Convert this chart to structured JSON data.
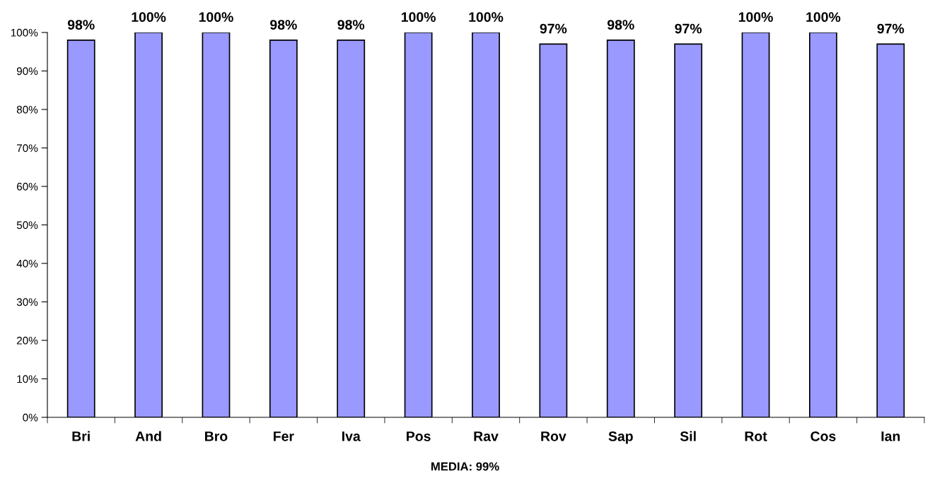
{
  "chart_data": {
    "type": "bar",
    "categories": [
      "Bri",
      "And",
      "Bro",
      "Fer",
      "Iva",
      "Pos",
      "Rav",
      "Rov",
      "Sap",
      "Sil",
      "Rot",
      "Cos",
      "Ian"
    ],
    "values": [
      98,
      100,
      100,
      98,
      98,
      100,
      100,
      97,
      98,
      97,
      100,
      100,
      97
    ],
    "value_labels": [
      "98%",
      "100%",
      "100%",
      "98%",
      "98%",
      "100%",
      "100%",
      "97%",
      "98%",
      "97%",
      "100%",
      "100%",
      "97%"
    ],
    "color": "#9999ff",
    "ylim": [
      0,
      100
    ],
    "yticks": [
      {
        "value": 0,
        "label": "0%"
      },
      {
        "value": 10,
        "label": "10%"
      },
      {
        "value": 20,
        "label": "20%"
      },
      {
        "value": 30,
        "label": "30%"
      },
      {
        "value": 40,
        "label": "40%"
      },
      {
        "value": 50,
        "label": "50%"
      },
      {
        "value": 60,
        "label": "60%"
      },
      {
        "value": 70,
        "label": "70%"
      },
      {
        "value": 80,
        "label": "80%"
      },
      {
        "value": 90,
        "label": "90%"
      },
      {
        "value": 100,
        "label": "100%"
      }
    ],
    "grid": false,
    "annotations": [
      "MEDIA: 99%"
    ]
  }
}
